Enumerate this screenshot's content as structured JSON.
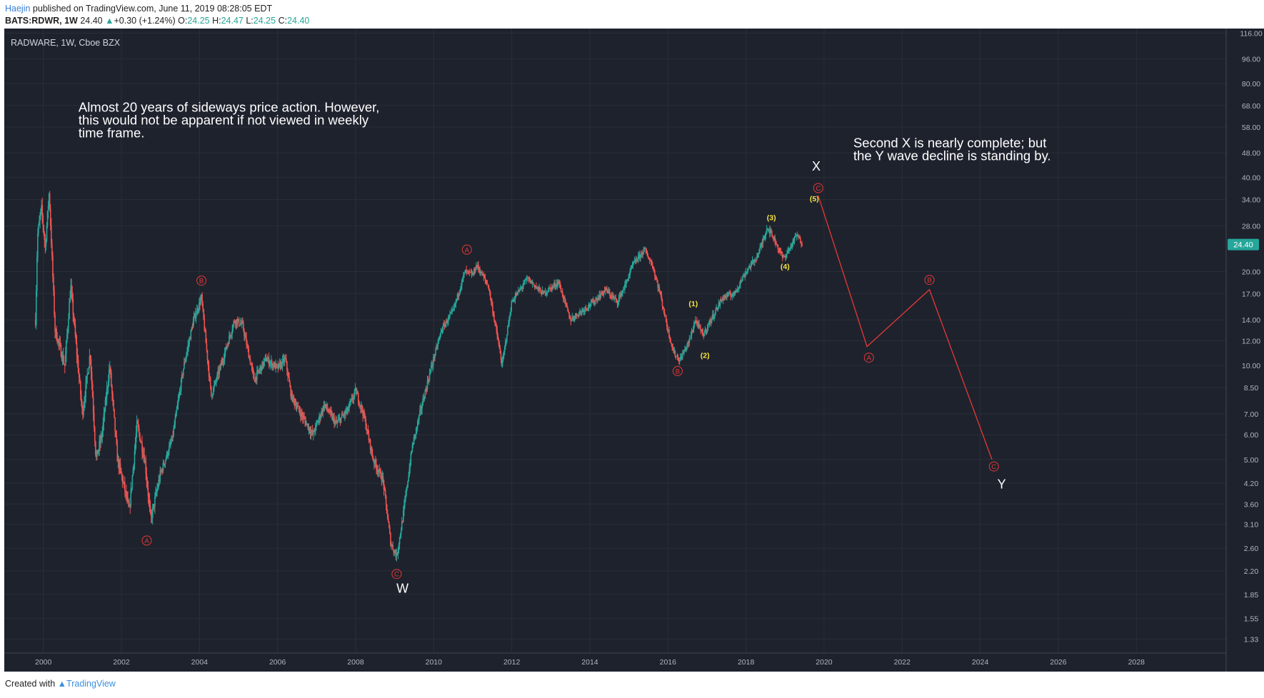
{
  "header": {
    "author": "Haejin",
    "published_text": "published on TradingView.com, June 11, 2019 08:28:05 EDT",
    "symbol": "BATS:RDWR, 1W",
    "last": "24.40",
    "change_arrow": "▲",
    "change": "+0.30 (+1.24%)",
    "open_label": "O:",
    "open": "24.25",
    "high_label": "H:",
    "high": "24.47",
    "low_label": "L:",
    "low": "24.25",
    "close_label": "C:",
    "close": "24.40"
  },
  "footer": {
    "created_with": "Created with",
    "brand": "TradingView"
  },
  "chart_data": {
    "type": "candlestick",
    "title": "RADWARE, 1W, Cboe BZX",
    "y_scale": "log",
    "ylim": [
      1.2,
      120
    ],
    "xlim": [
      1999.0,
      2030.3
    ],
    "y_ticks": [
      "116.00",
      "96.00",
      "80.00",
      "68.00",
      "58.00",
      "48.00",
      "40.00",
      "34.00",
      "28.00",
      "24.40",
      "20.00",
      "17.00",
      "14.00",
      "12.00",
      "10.00",
      "8.50",
      "7.00",
      "6.00",
      "5.00",
      "4.20",
      "3.60",
      "3.10",
      "2.60",
      "2.20",
      "1.85",
      "1.55",
      "1.33"
    ],
    "x_ticks": [
      "2000",
      "2002",
      "2004",
      "2006",
      "2008",
      "2010",
      "2012",
      "2014",
      "2016",
      "2018",
      "2020",
      "2022",
      "2024",
      "2026",
      "2028"
    ],
    "last_price": {
      "label": "24.40",
      "value": 24.4,
      "color": "#26a69a"
    },
    "colors": {
      "background": "#1e222d",
      "grid": "#2a2e39",
      "up": "#26a69a",
      "down": "#ef5350",
      "wave": "#e53935",
      "minor_wave": "#f5e342"
    },
    "price_path": [
      [
        1999.8,
        14
      ],
      [
        1999.85,
        26
      ],
      [
        1999.95,
        32
      ],
      [
        2000.05,
        24
      ],
      [
        2000.15,
        36
      ],
      [
        2000.3,
        13
      ],
      [
        2000.55,
        10
      ],
      [
        2000.7,
        18
      ],
      [
        2001.0,
        7
      ],
      [
        2001.2,
        11
      ],
      [
        2001.35,
        5
      ],
      [
        2001.5,
        6
      ],
      [
        2001.7,
        10
      ],
      [
        2001.9,
        5
      ],
      [
        2002.05,
        4.2
      ],
      [
        2002.2,
        3.4
      ],
      [
        2002.4,
        6.5
      ],
      [
        2002.6,
        5
      ],
      [
        2002.75,
        3.2
      ],
      [
        2003.0,
        4.5
      ],
      [
        2003.3,
        5.8
      ],
      [
        2003.6,
        10
      ],
      [
        2003.85,
        14
      ],
      [
        2004.05,
        16.5
      ],
      [
        2004.3,
        8
      ],
      [
        2004.6,
        10.5
      ],
      [
        2004.9,
        14
      ],
      [
        2005.1,
        13.5
      ],
      [
        2005.4,
        9
      ],
      [
        2005.7,
        10.5
      ],
      [
        2006.0,
        9.8
      ],
      [
        2006.2,
        10.5
      ],
      [
        2006.35,
        8
      ],
      [
        2006.6,
        7
      ],
      [
        2006.9,
        6
      ],
      [
        2007.2,
        7.5
      ],
      [
        2007.5,
        6.5
      ],
      [
        2007.8,
        7.2
      ],
      [
        2008.0,
        8.3
      ],
      [
        2008.2,
        7
      ],
      [
        2008.45,
        5
      ],
      [
        2008.7,
        4.3
      ],
      [
        2008.9,
        2.7
      ],
      [
        2009.05,
        2.45
      ],
      [
        2009.2,
        3.2
      ],
      [
        2009.45,
        5.5
      ],
      [
        2009.7,
        7.5
      ],
      [
        2009.95,
        10
      ],
      [
        2010.2,
        13
      ],
      [
        2010.5,
        15
      ],
      [
        2010.8,
        20
      ],
      [
        2011.0,
        19.5
      ],
      [
        2011.1,
        21
      ],
      [
        2011.4,
        18
      ],
      [
        2011.65,
        12
      ],
      [
        2011.75,
        10
      ],
      [
        2012.0,
        16
      ],
      [
        2012.4,
        19
      ],
      [
        2012.8,
        17
      ],
      [
        2013.2,
        18.5
      ],
      [
        2013.5,
        14
      ],
      [
        2013.8,
        15
      ],
      [
        2014.1,
        16
      ],
      [
        2014.4,
        17.5
      ],
      [
        2014.7,
        16
      ],
      [
        2014.9,
        18
      ],
      [
        2015.1,
        21
      ],
      [
        2015.4,
        23.5
      ],
      [
        2015.6,
        21
      ],
      [
        2015.8,
        17
      ],
      [
        2016.0,
        13
      ],
      [
        2016.15,
        11
      ],
      [
        2016.3,
        10.4
      ],
      [
        2016.55,
        12
      ],
      [
        2016.7,
        14
      ],
      [
        2016.9,
        12.5
      ],
      [
        2017.1,
        14
      ],
      [
        2017.4,
        16.5
      ],
      [
        2017.7,
        17
      ],
      [
        2018.0,
        20
      ],
      [
        2018.3,
        22.5
      ],
      [
        2018.55,
        27.8
      ],
      [
        2018.75,
        25
      ],
      [
        2018.95,
        22
      ],
      [
        2019.1,
        23.5
      ],
      [
        2019.3,
        26.2
      ],
      [
        2019.45,
        24.4
      ]
    ],
    "wave_path": [
      [
        2019.85,
        35
      ],
      [
        2021.1,
        11.5
      ],
      [
        2022.7,
        17.5
      ],
      [
        2024.3,
        5.0
      ]
    ],
    "wave_labels": [
      {
        "text": "A",
        "x": 2002.65,
        "y": 2.75,
        "kind": "circle"
      },
      {
        "text": "B",
        "x": 2004.05,
        "y": 18.7,
        "kind": "circle"
      },
      {
        "text": "C",
        "x": 2009.05,
        "y": 2.15,
        "kind": "circle"
      },
      {
        "text": "A",
        "x": 2010.85,
        "y": 23.5,
        "kind": "circle"
      },
      {
        "text": "B",
        "x": 2016.25,
        "y": 9.6,
        "kind": "circle"
      },
      {
        "text": "C",
        "x": 2019.85,
        "y": 37,
        "kind": "circle"
      },
      {
        "text": "A",
        "x": 2021.15,
        "y": 10.6,
        "kind": "circle"
      },
      {
        "text": "B",
        "x": 2022.7,
        "y": 18.8,
        "kind": "circle"
      },
      {
        "text": "C",
        "x": 2024.35,
        "y": 4.75,
        "kind": "circle"
      },
      {
        "text": "(1)",
        "x": 2016.65,
        "y": 15.8,
        "kind": "minor"
      },
      {
        "text": "(2)",
        "x": 2016.95,
        "y": 10.8,
        "kind": "minor"
      },
      {
        "text": "(3)",
        "x": 2018.65,
        "y": 29.8,
        "kind": "minor"
      },
      {
        "text": "(4)",
        "x": 2019.0,
        "y": 20.8,
        "kind": "minor"
      },
      {
        "text": "(5)",
        "x": 2019.75,
        "y": 34.3,
        "kind": "minor"
      },
      {
        "text": "W",
        "x": 2009.2,
        "y": 1.93,
        "kind": "big"
      },
      {
        "text": "X",
        "x": 2019.8,
        "y": 43.5,
        "kind": "big"
      },
      {
        "text": "Y",
        "x": 2024.55,
        "y": 4.17,
        "kind": "big"
      }
    ],
    "annotations": [
      {
        "lines": [
          "Almost 20 years of sideways price action. However,",
          "this would not be apparent if not viewed in weekly",
          "time frame."
        ],
        "x": 2000.9,
        "y": 65
      },
      {
        "lines": [
          "Second X is nearly complete; but",
          "the Y wave decline is standing by."
        ],
        "x": 2020.75,
        "y": 50
      }
    ]
  }
}
